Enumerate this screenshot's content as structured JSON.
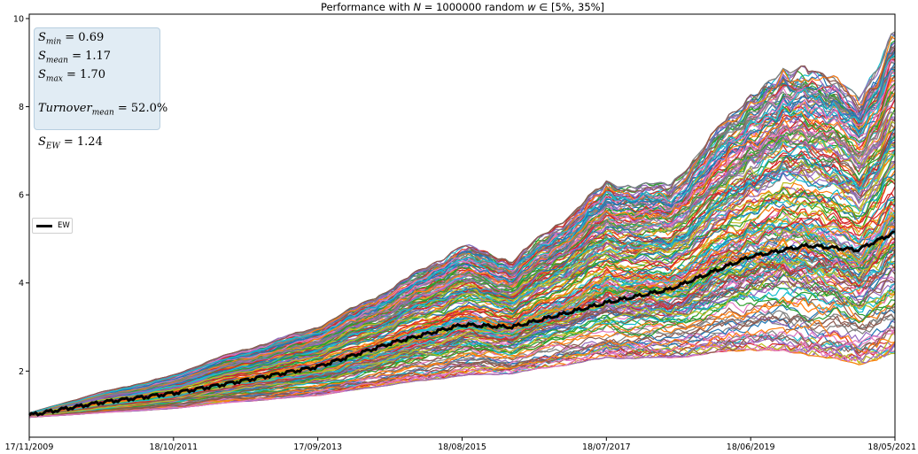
{
  "chart_data": {
    "type": "line",
    "title": "Performance with N = 1000000 random w ∈ [5%, 35%]",
    "title_parts": {
      "prefix": "Performance with",
      "n_symbol": "N",
      "n_value": "= 1000000 random",
      "w_symbol": "w",
      "range": "∈ [5%, 35%]"
    },
    "xlabel": "",
    "ylabel": "",
    "x_ticks": [
      "17/11/2009",
      "18/10/2011",
      "17/09/2013",
      "18/08/2015",
      "18/07/2017",
      "18/06/2019",
      "18/05/2021"
    ],
    "y_ticks": [
      "2",
      "4",
      "6",
      "8",
      "10"
    ],
    "ylim": [
      0.5,
      10.1
    ],
    "grid": false,
    "legend_placement": "center-left",
    "series": [
      {
        "name": "EW",
        "color": "#000000",
        "x": [
          "17/11/2009",
          "18/10/2010",
          "18/10/2011",
          "18/04/2012",
          "17/09/2013",
          "18/09/2014",
          "18/08/2015",
          "18/04/2016",
          "18/07/2017",
          "18/05/2018",
          "18/06/2019",
          "18/03/2020",
          "18/11/2020",
          "18/05/2021"
        ],
        "values": [
          1.0,
          1.28,
          1.5,
          1.65,
          2.1,
          2.65,
          3.05,
          3.0,
          3.55,
          3.85,
          4.6,
          4.85,
          4.75,
          5.15
        ]
      }
    ],
    "random_portfolios": {
      "count_shown": "many",
      "envelope_x": [
        "17/11/2009",
        "18/10/2010",
        "18/10/2011",
        "18/04/2012",
        "17/09/2013",
        "18/09/2014",
        "18/08/2015",
        "18/04/2016",
        "18/07/2017",
        "18/05/2018",
        "18/06/2019",
        "18/03/2020",
        "18/11/2020",
        "18/05/2021"
      ],
      "envelope_low": [
        0.95,
        1.05,
        1.15,
        1.25,
        1.45,
        1.7,
        1.9,
        1.95,
        2.3,
        2.3,
        2.5,
        2.4,
        2.15,
        2.4
      ],
      "envelope_high": [
        1.05,
        1.5,
        1.9,
        2.25,
        3.0,
        3.9,
        4.85,
        4.5,
        6.25,
        6.2,
        8.3,
        9.0,
        8.2,
        9.7
      ],
      "colors": [
        "#1f77b4",
        "#ff7f0e",
        "#2ca02c",
        "#d62728",
        "#9467bd",
        "#8c564b",
        "#e377c2",
        "#7f7f7f",
        "#bcbd22",
        "#17becf"
      ]
    },
    "annotations": {
      "s_min_label": "S",
      "s_min_sub": "min",
      "s_min_value": "= 0.69",
      "s_mean_label": "S",
      "s_mean_sub": "mean",
      "s_mean_value": "= 1.17",
      "s_max_label": "S",
      "s_max_sub": "max",
      "s_max_value": "= 1.70",
      "turnover_label": "Turnover",
      "turnover_sub": "mean",
      "turnover_value": "= 52.0%",
      "s_ew_label": "S",
      "s_ew_sub": "EW",
      "s_ew_value": "= 1.24"
    }
  }
}
